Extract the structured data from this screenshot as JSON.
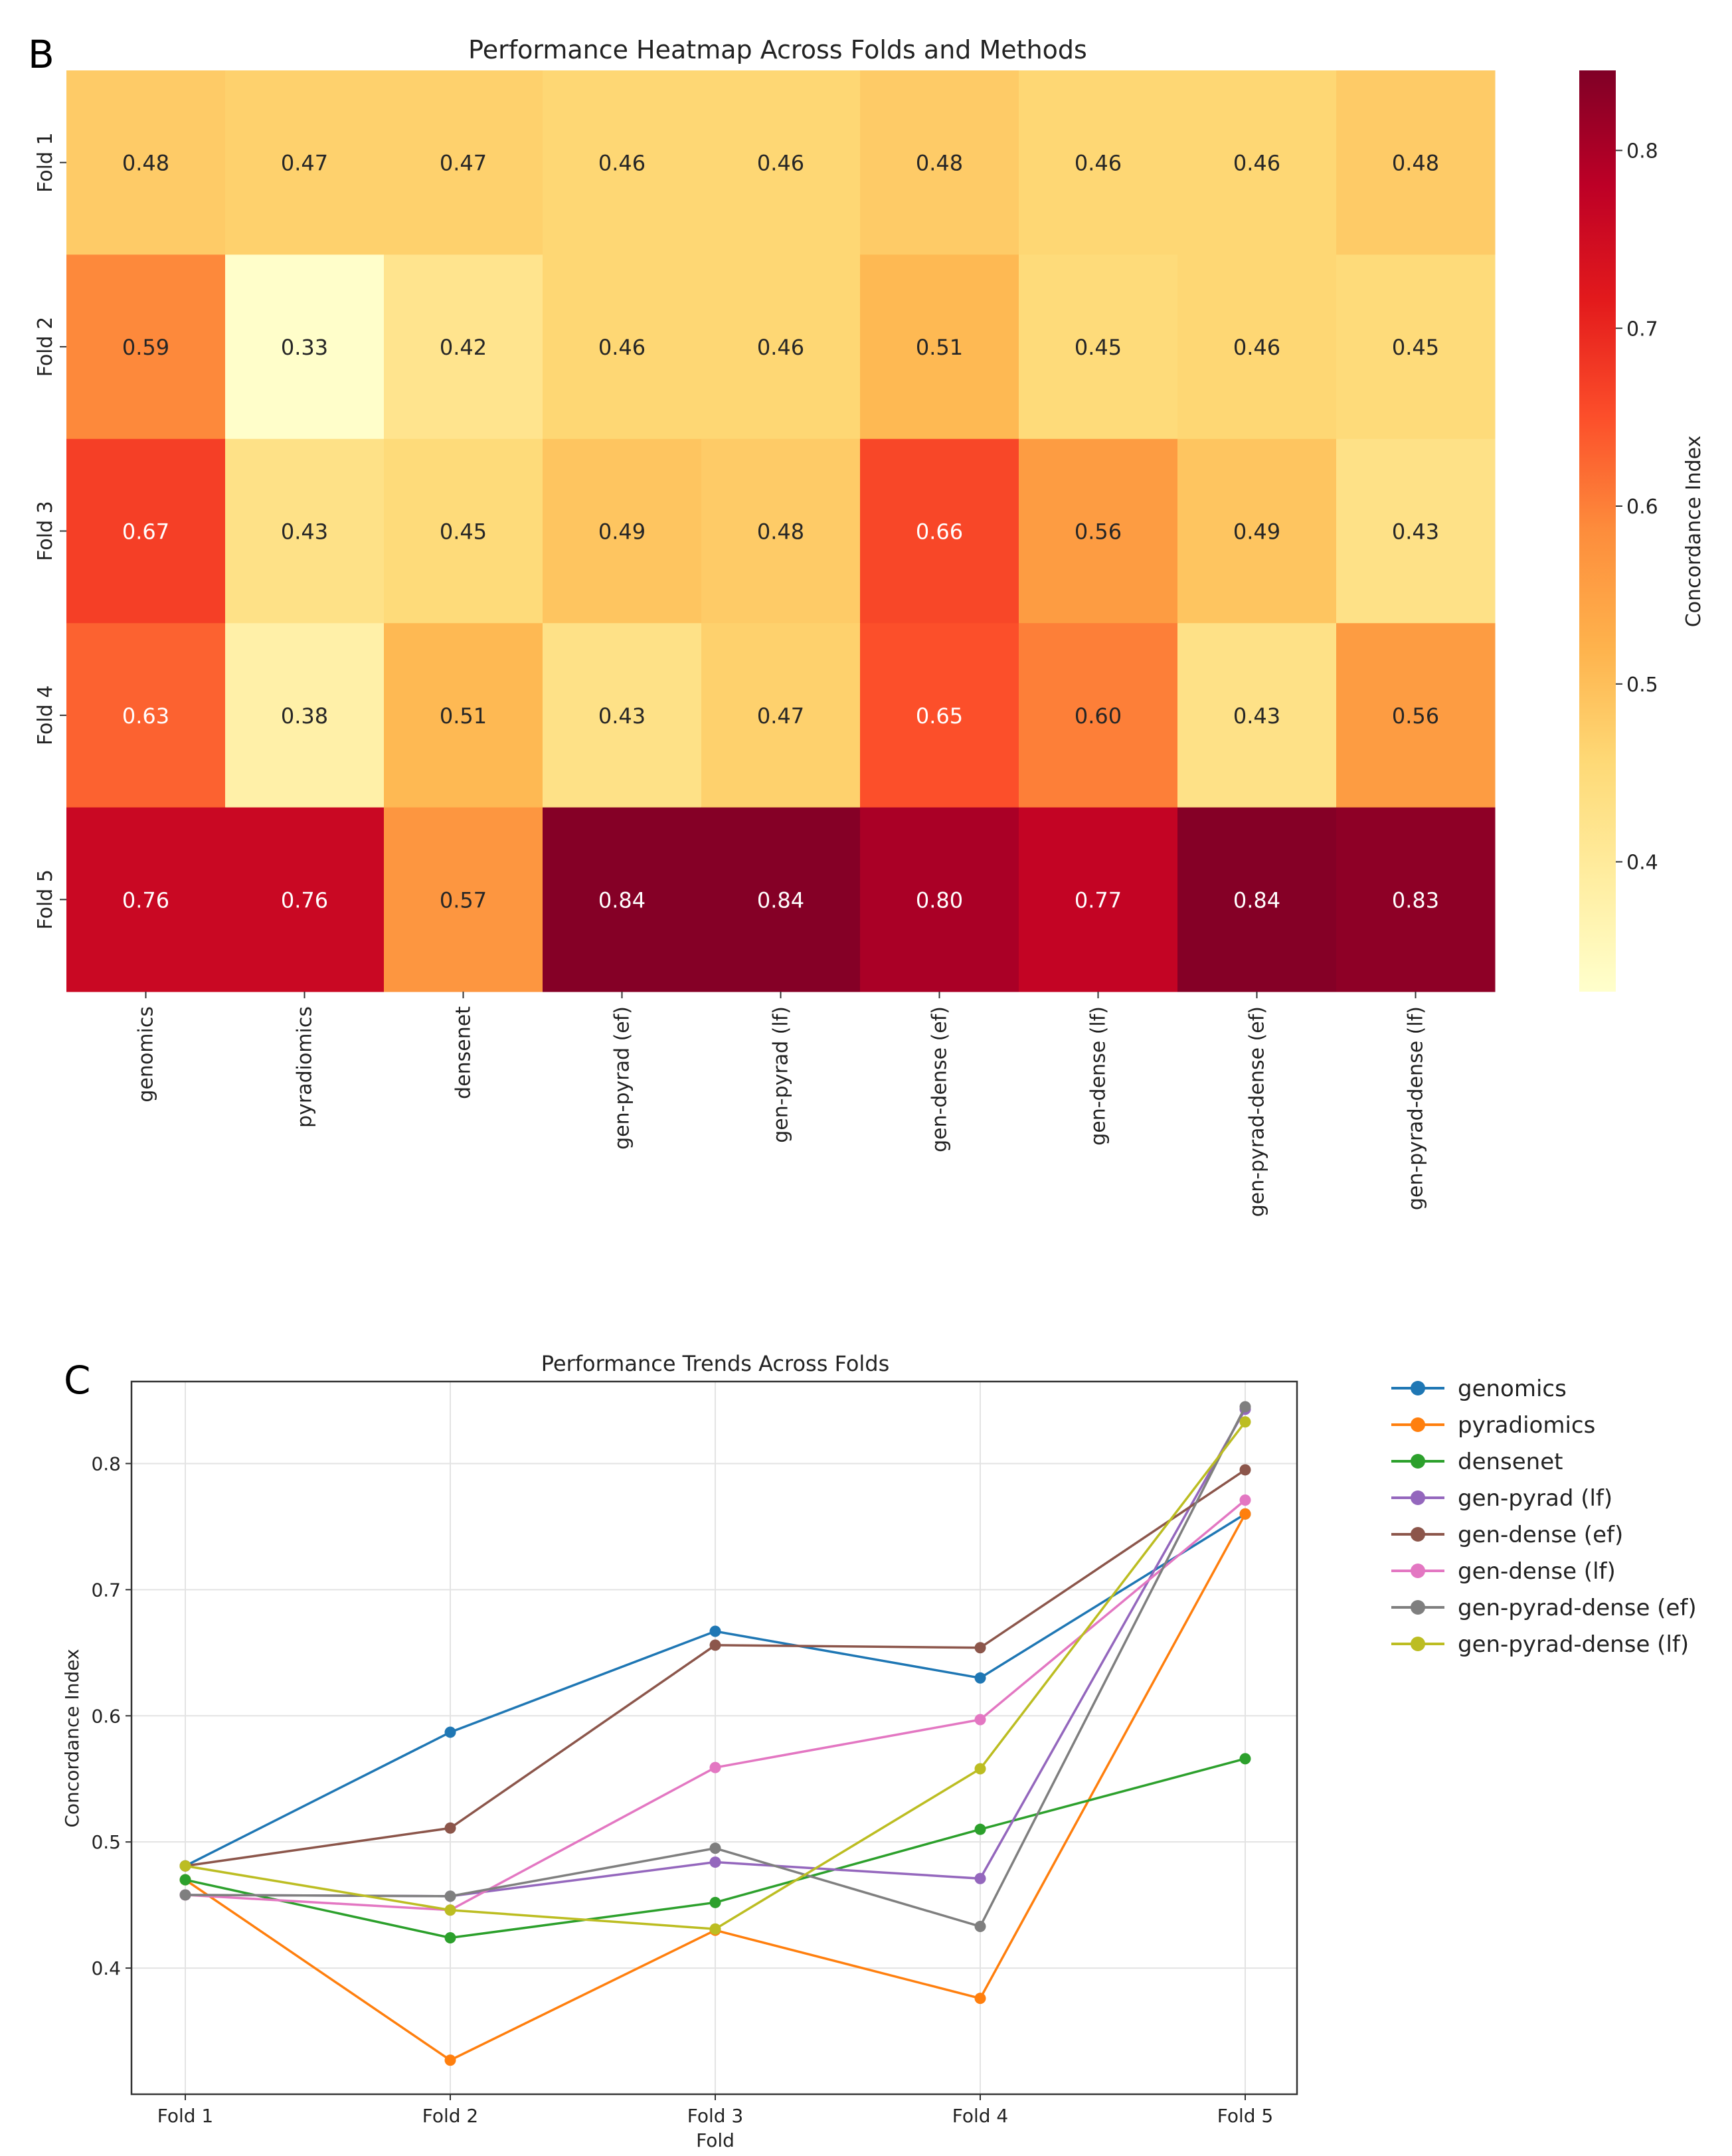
{
  "panels": {
    "b_letter": "B",
    "c_letter": "C"
  },
  "chart_data": [
    {
      "type": "heatmap",
      "title": "Performance Heatmap Across Folds and Methods",
      "rows": [
        "Fold 1",
        "Fold 2",
        "Fold 3",
        "Fold 4",
        "Fold 5"
      ],
      "columns": [
        "genomics",
        "pyradiomics",
        "densenet",
        "gen-pyrad (ef)",
        "gen-pyrad (lf)",
        "gen-dense (ef)",
        "gen-dense (lf)",
        "gen-pyrad-dense (ef)",
        "gen-pyrad-dense (lf)"
      ],
      "values": [
        [
          0.48,
          0.47,
          0.47,
          0.46,
          0.46,
          0.48,
          0.46,
          0.46,
          0.48
        ],
        [
          0.59,
          0.33,
          0.42,
          0.46,
          0.46,
          0.51,
          0.45,
          0.46,
          0.45
        ],
        [
          0.67,
          0.43,
          0.45,
          0.49,
          0.48,
          0.66,
          0.56,
          0.49,
          0.43
        ],
        [
          0.63,
          0.38,
          0.51,
          0.43,
          0.47,
          0.65,
          0.6,
          0.43,
          0.56
        ],
        [
          0.76,
          0.76,
          0.57,
          0.84,
          0.84,
          0.8,
          0.77,
          0.84,
          0.83
        ]
      ],
      "colormap": "YlOrRd",
      "colorbar": {
        "label": "Concordance Index",
        "range": [
          0.327,
          0.845
        ],
        "ticks": [
          "0.4",
          "0.5",
          "0.6",
          "0.7",
          "0.8"
        ]
      }
    },
    {
      "type": "line",
      "title": "Performance Trends Across Folds",
      "xlabel": "Fold",
      "ylabel": "Concordance Index",
      "categories": [
        "Fold 1",
        "Fold 2",
        "Fold 3",
        "Fold 4",
        "Fold 5"
      ],
      "ylim": [
        0.3,
        0.865
      ],
      "yticks": [
        "0.4",
        "0.5",
        "0.6",
        "0.7",
        "0.8"
      ],
      "grid": true,
      "legend_position": "outside-right",
      "series": [
        {
          "name": "genomics",
          "color": "#1f77b4",
          "values": [
            0.481,
            0.587,
            0.667,
            0.63,
            0.76
          ]
        },
        {
          "name": "pyradiomics",
          "color": "#ff7f0e",
          "values": [
            0.47,
            0.327,
            0.43,
            0.376,
            0.76
          ]
        },
        {
          "name": "densenet",
          "color": "#2ca02c",
          "values": [
            0.47,
            0.424,
            0.452,
            0.51,
            0.566
          ]
        },
        {
          "name": "gen-pyrad (lf)",
          "color": "#9467bd",
          "values": [
            0.458,
            0.457,
            0.484,
            0.471,
            0.843
          ]
        },
        {
          "name": "gen-dense (ef)",
          "color": "#8c564b",
          "values": [
            0.481,
            0.511,
            0.656,
            0.654,
            0.795
          ]
        },
        {
          "name": "gen-dense (lf)",
          "color": "#e377c2",
          "values": [
            0.458,
            0.446,
            0.559,
            0.597,
            0.771
          ]
        },
        {
          "name": "gen-pyrad-dense (ef)",
          "color": "#7f7f7f",
          "values": [
            0.458,
            0.457,
            0.495,
            0.433,
            0.845
          ]
        },
        {
          "name": "gen-pyrad-dense (lf)",
          "color": "#bcbd22",
          "values": [
            0.481,
            0.446,
            0.431,
            0.558,
            0.833
          ]
        }
      ]
    }
  ]
}
